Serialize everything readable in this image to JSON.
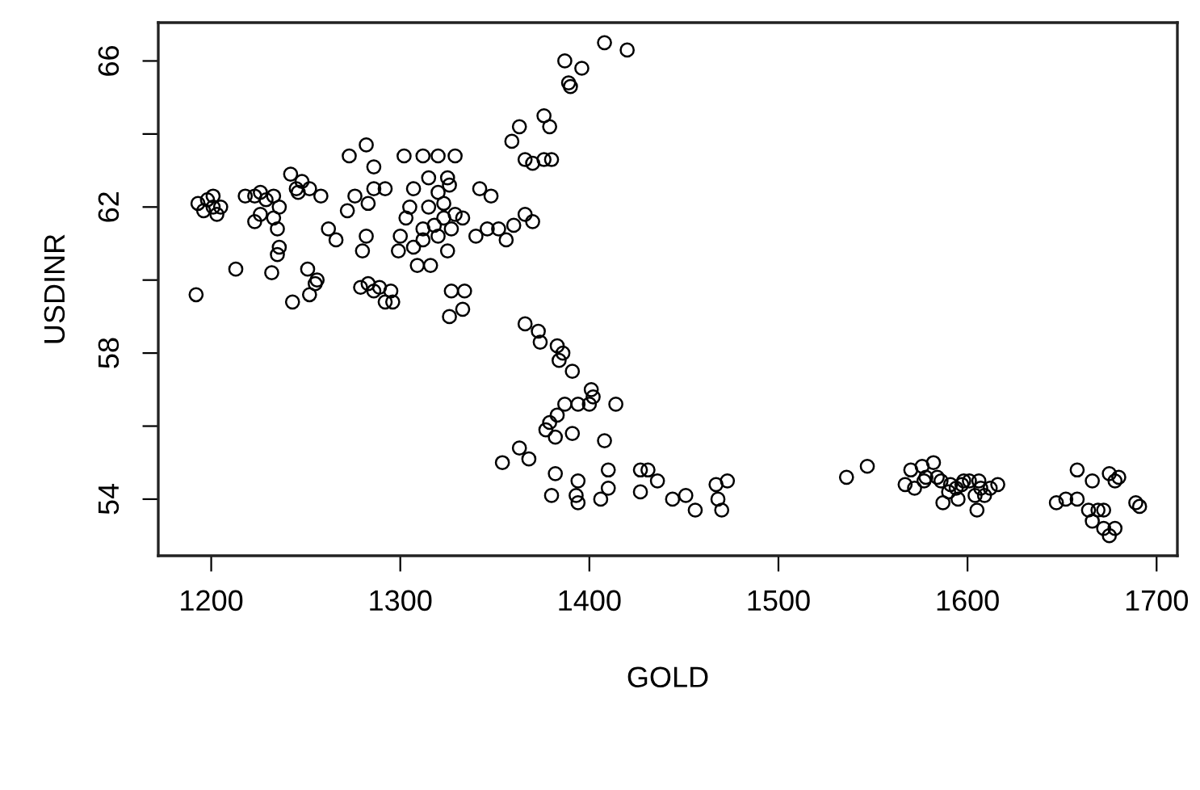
{
  "chart_data": {
    "type": "scatter",
    "xlabel": "GOLD",
    "ylabel": "USDINR",
    "marker": "circle",
    "color": "#000000",
    "grid": false,
    "legend": false,
    "xlim": [
      1172,
      1711
    ],
    "ylim": [
      52.45,
      67.05
    ],
    "xticks": [
      1200,
      1300,
      1400,
      1500,
      1600,
      1700
    ],
    "yticks": [
      54,
      {
        "value": 56,
        "label": null
      },
      58,
      {
        "value": 60,
        "label": null
      },
      62,
      {
        "value": 64,
        "label": null
      },
      66
    ],
    "x": [
      1193,
      1198,
      1201,
      1203,
      1196,
      1201,
      1205,
      1192,
      1213,
      1218,
      1223,
      1226,
      1229,
      1233,
      1236,
      1226,
      1223,
      1233,
      1235,
      1236,
      1235,
      1232,
      1242,
      1245,
      1248,
      1246,
      1252,
      1258,
      1243,
      1252,
      1255,
      1251,
      1256,
      1273,
      1282,
      1286,
      1286,
      1292,
      1276,
      1272,
      1283,
      1262,
      1266,
      1282,
      1280,
      1279,
      1283,
      1286,
      1289,
      1292,
      1296,
      1295,
      1302,
      1312,
      1320,
      1329,
      1315,
      1325,
      1326,
      1307,
      1305,
      1315,
      1318,
      1323,
      1329,
      1333,
      1327,
      1320,
      1325,
      1312,
      1307,
      1300,
      1299,
      1309,
      1316,
      1303,
      1312,
      1323,
      1320,
      1342,
      1348,
      1340,
      1346,
      1352,
      1356,
      1360,
      1366,
      1370,
      1327,
      1334,
      1333,
      1326,
      1366,
      1373,
      1359,
      1363,
      1376,
      1379,
      1366,
      1370,
      1376,
      1380,
      1389,
      1387,
      1396,
      1390,
      1408,
      1420,
      1374,
      1383,
      1386,
      1384,
      1391,
      1401,
      1402,
      1400,
      1414,
      1394,
      1387,
      1383,
      1379,
      1377,
      1382,
      1391,
      1408,
      1354,
      1363,
      1368,
      1382,
      1380,
      1394,
      1393,
      1394,
      1406,
      1410,
      1410,
      1427,
      1431,
      1436,
      1427,
      1444,
      1451,
      1456,
      1467,
      1468,
      1470,
      1473,
      1536,
      1547,
      1567,
      1570,
      1576,
      1577,
      1582,
      1586,
      1590,
      1594,
      1598,
      1601,
      1604,
      1606,
      1612,
      1616,
      1605,
      1587,
      1595,
      1609,
      1572,
      1658,
      1666,
      1675,
      1680,
      1647,
      1652,
      1658,
      1664,
      1669,
      1666,
      1672,
      1675,
      1678,
      1672,
      1691,
      1689,
      1678,
      1578,
      1584,
      1591,
      1597,
      1607
    ],
    "values": [
      62.1,
      62.2,
      62.0,
      61.8,
      61.9,
      62.3,
      62.0,
      59.6,
      60.3,
      62.3,
      62.3,
      62.4,
      62.2,
      62.3,
      62.0,
      61.8,
      61.6,
      61.7,
      61.4,
      60.9,
      60.7,
      60.2,
      62.9,
      62.5,
      62.7,
      62.4,
      62.5,
      62.3,
      59.4,
      59.6,
      59.9,
      60.3,
      60.0,
      63.4,
      63.7,
      63.1,
      62.5,
      62.5,
      62.3,
      61.9,
      62.1,
      61.4,
      61.1,
      61.2,
      60.8,
      59.8,
      59.9,
      59.7,
      59.8,
      59.4,
      59.4,
      59.7,
      63.4,
      63.4,
      63.4,
      63.4,
      62.8,
      62.8,
      62.6,
      62.5,
      62.0,
      62.0,
      61.5,
      61.7,
      61.8,
      61.7,
      61.4,
      61.2,
      60.8,
      61.1,
      60.9,
      61.2,
      60.8,
      60.4,
      60.4,
      61.7,
      61.4,
      62.1,
      62.4,
      62.5,
      62.3,
      61.2,
      61.4,
      61.4,
      61.1,
      61.5,
      61.8,
      61.6,
      59.7,
      59.7,
      59.2,
      59.0,
      58.8,
      58.6,
      63.8,
      64.2,
      64.5,
      64.2,
      63.3,
      63.2,
      63.3,
      63.3,
      65.4,
      66.0,
      65.8,
      65.3,
      66.5,
      66.3,
      58.3,
      58.2,
      58.0,
      57.8,
      57.5,
      57.0,
      56.8,
      56.6,
      56.6,
      56.6,
      56.6,
      56.3,
      56.1,
      55.9,
      55.7,
      55.8,
      55.6,
      55.0,
      55.4,
      55.1,
      54.7,
      54.1,
      54.5,
      54.1,
      53.9,
      54.0,
      54.8,
      54.3,
      54.8,
      54.8,
      54.5,
      54.2,
      54.0,
      54.1,
      53.7,
      54.4,
      54.0,
      53.7,
      54.5,
      54.6,
      54.9,
      54.4,
      54.8,
      54.9,
      54.5,
      55.0,
      54.5,
      54.2,
      54.3,
      54.5,
      54.5,
      54.1,
      54.5,
      54.3,
      54.4,
      53.7,
      53.9,
      54.0,
      54.1,
      54.3,
      54.8,
      54.5,
      54.7,
      54.6,
      53.9,
      54.0,
      54.0,
      53.7,
      53.7,
      53.4,
      53.2,
      53.0,
      53.2,
      53.7,
      53.8,
      53.9,
      54.5,
      54.6,
      54.6,
      54.4,
      54.4,
      54.3
    ]
  }
}
